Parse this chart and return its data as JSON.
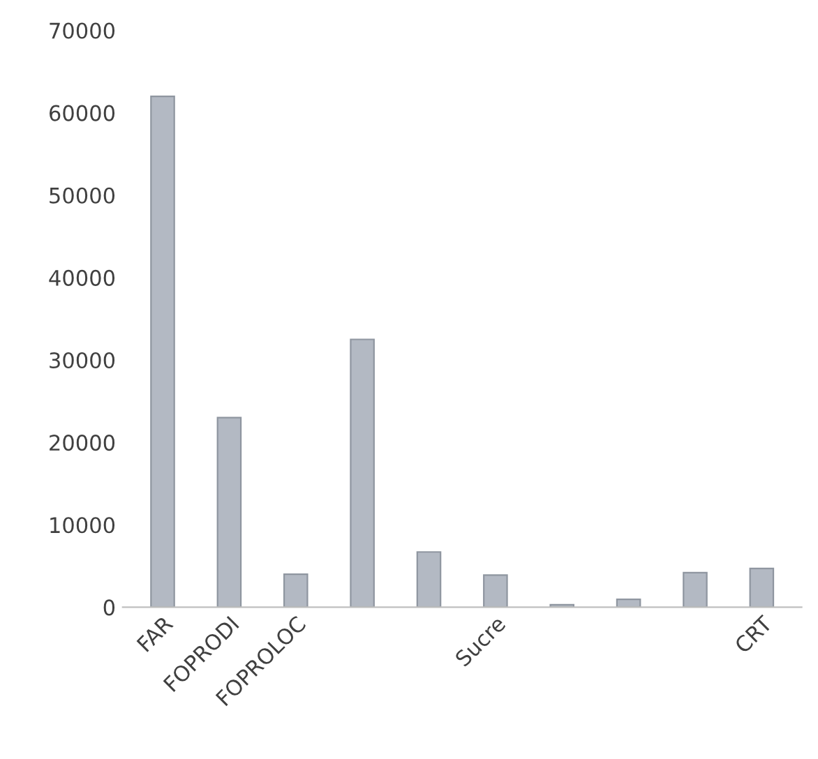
{
  "chart_data": {
    "type": "bar",
    "categories": [
      "FAR",
      "FOPRODI",
      "FOPROLOC",
      null,
      null,
      "Sucre",
      null,
      null,
      null,
      "CRT"
    ],
    "values": [
      62000,
      23000,
      4000,
      32500,
      6700,
      3900,
      300,
      950,
      4200,
      4700
    ],
    "color": "#b3b9c3",
    "ylim": [
      0,
      70000
    ],
    "yticks": [
      0,
      10000,
      20000,
      30000,
      40000,
      50000,
      60000,
      70000
    ],
    "grid": false,
    "legend": false
  }
}
